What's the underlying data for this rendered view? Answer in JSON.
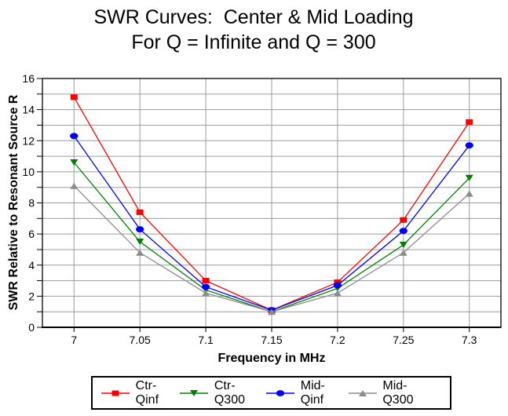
{
  "chart_data": {
    "type": "line",
    "title": "SWR Curves:  Center & Mid Loading",
    "subtitle": "For Q = Infinite and Q = 300",
    "xlabel": "Frequency in MHz",
    "ylabel": "SWR Relative to Resonant Source R",
    "x": [
      7,
      7.05,
      7.1,
      7.15,
      7.2,
      7.25,
      7.3
    ],
    "x_tick_labels": [
      "7",
      "7.05",
      "7.1",
      "7.15",
      "7.2",
      "7.25",
      "7.3"
    ],
    "y_tick_labels": [
      "0",
      "2",
      "4",
      "6",
      "8",
      "10",
      "12",
      "14",
      "16"
    ],
    "xlim": [
      6.976,
      7.324
    ],
    "ylim": [
      0,
      16
    ],
    "y_major_tick_step": 2,
    "y_gridline_step": 1,
    "grid": true,
    "legend_position": "bottom",
    "series": [
      {
        "name": "Ctr-Qinf",
        "color": "#ff0000",
        "marker": "square",
        "values": [
          14.8,
          7.4,
          3.0,
          1.1,
          2.9,
          6.9,
          13.2
        ]
      },
      {
        "name": "Ctr-Q300",
        "color": "#008000",
        "marker": "triangle-down",
        "values": [
          10.6,
          5.5,
          2.4,
          1.0,
          2.5,
          5.3,
          9.6
        ]
      },
      {
        "name": "Mid-Qinf",
        "color": "#0000ff",
        "marker": "circle",
        "values": [
          12.3,
          6.3,
          2.6,
          1.1,
          2.7,
          6.2,
          11.7
        ]
      },
      {
        "name": "Mid-Q300",
        "color": "#8c8c8c",
        "marker": "triangle-up",
        "values": [
          9.1,
          4.8,
          2.2,
          1.0,
          2.2,
          4.8,
          8.6
        ]
      }
    ]
  },
  "colors": {
    "gridline": "#9c9c9c",
    "axis": "#000000",
    "background": "#ffffff",
    "text": "#000000"
  }
}
